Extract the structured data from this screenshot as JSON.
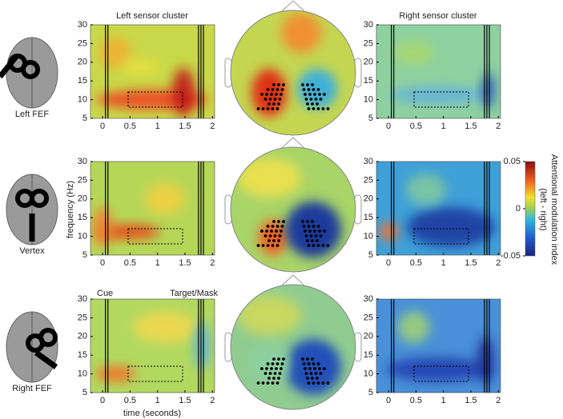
{
  "columns": {
    "left": "Left sensor cluster",
    "right": "Right sensor cluster"
  },
  "rows": [
    {
      "label": "Left FEF"
    },
    {
      "label": "Vertex"
    },
    {
      "label": "Right FEF"
    }
  ],
  "axes": {
    "y_label": "frequency (Hz)",
    "x_label": "time (seconds)",
    "xlim": [
      -0.22,
      2.04
    ],
    "ylim": [
      5,
      30
    ],
    "xticks": [
      0,
      0.5,
      1,
      1.5,
      2
    ],
    "yticks": [
      5,
      10,
      15,
      20,
      25,
      30
    ]
  },
  "annotations": {
    "cue": "Cue",
    "target": "Target/Mask"
  },
  "colorbar": {
    "label_line1": "Attentional modulation index",
    "label_line2": "(left - right)",
    "lim": [
      -0.05,
      0.05
    ],
    "ticks": [
      0.05,
      0,
      -0.05
    ]
  }
}
